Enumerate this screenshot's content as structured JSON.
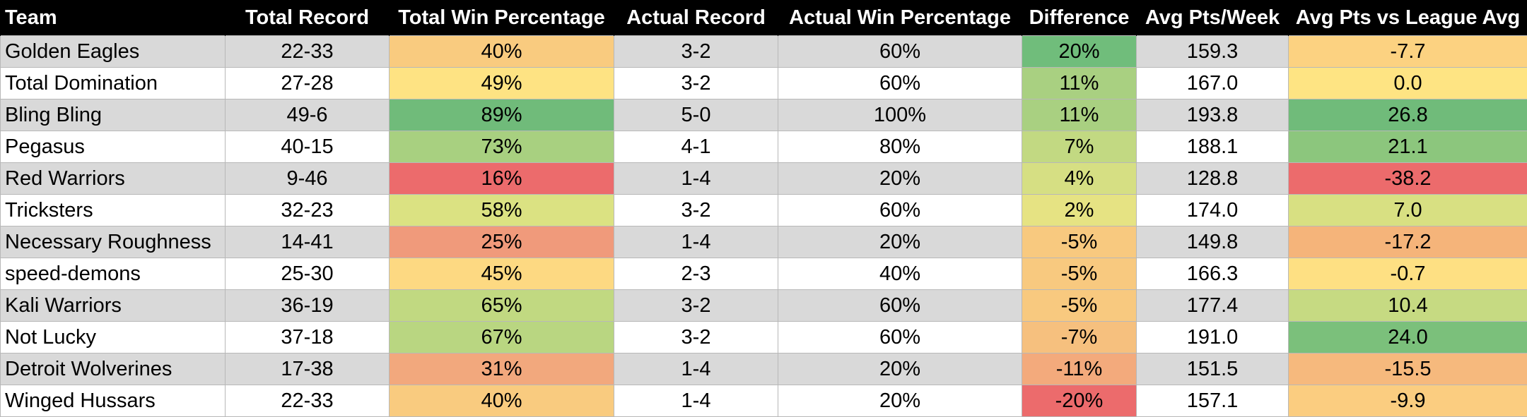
{
  "table": {
    "headers": [
      "Team",
      "Total Record",
      "Total Win Percentage",
      "Actual Record",
      "Actual Win Percentage",
      "Difference",
      "Avg Pts/Week",
      "Avg Pts vs League Avg"
    ],
    "band_colors": [
      "#d9d9d9",
      "#ffffff"
    ],
    "rows": [
      {
        "team": "Golden Eagles",
        "total_record": "22-33",
        "total_win_pct": "40%",
        "total_win_pct_color": "#f9cb7f",
        "actual_record": "3-2",
        "actual_win_pct": "60%",
        "difference": "20%",
        "difference_color": "#70bd7b",
        "avg_pts": "159.3",
        "vs_league": "-7.7",
        "vs_league_color": "#fcd281"
      },
      {
        "team": "Total Domination",
        "total_record": "27-28",
        "total_win_pct": "49%",
        "total_win_pct_color": "#fee383",
        "actual_record": "3-2",
        "actual_win_pct": "60%",
        "difference": "11%",
        "difference_color": "#a9d081",
        "avg_pts": "167.0",
        "vs_league": "0.0",
        "vs_league_color": "#fee483"
      },
      {
        "team": "Bling Bling",
        "total_record": "49-6",
        "total_win_pct": "89%",
        "total_win_pct_color": "#70bb7a",
        "actual_record": "5-0",
        "actual_win_pct": "100%",
        "difference": "11%",
        "difference_color": "#a9d081",
        "avg_pts": "193.8",
        "vs_league": "26.8",
        "vs_league_color": "#70bb7a"
      },
      {
        "team": "Pegasus",
        "total_record": "40-15",
        "total_win_pct": "73%",
        "total_win_pct_color": "#a8d080",
        "actual_record": "4-1",
        "actual_win_pct": "80%",
        "difference": "7%",
        "difference_color": "#c2d982",
        "avg_pts": "188.1",
        "vs_league": "21.1",
        "vs_league_color": "#8cc67d"
      },
      {
        "team": "Red Warriors",
        "total_record": "9-46",
        "total_win_pct": "16%",
        "total_win_pct_color": "#ec6b6c",
        "actual_record": "1-4",
        "actual_win_pct": "20%",
        "difference": "4%",
        "difference_color": "#d6df83",
        "avg_pts": "128.8",
        "vs_league": "-38.2",
        "vs_league_color": "#ec6b6c"
      },
      {
        "team": "Tricksters",
        "total_record": "32-23",
        "total_win_pct": "58%",
        "total_win_pct_color": "#dbe282",
        "actual_record": "3-2",
        "actual_win_pct": "60%",
        "difference": "2%",
        "difference_color": "#e6e383",
        "avg_pts": "174.0",
        "vs_league": "7.0",
        "vs_league_color": "#d8e082"
      },
      {
        "team": "Necessary Roughness",
        "total_record": "14-41",
        "total_win_pct": "25%",
        "total_win_pct_color": "#f09a7b",
        "actual_record": "1-4",
        "actual_win_pct": "20%",
        "difference": "-5%",
        "difference_color": "#f8c97f",
        "avg_pts": "149.8",
        "vs_league": "-17.2",
        "vs_league_color": "#f5b47a"
      },
      {
        "team": "speed-demons",
        "total_record": "25-30",
        "total_win_pct": "45%",
        "total_win_pct_color": "#fdd982",
        "actual_record": "2-3",
        "actual_win_pct": "40%",
        "difference": "-5%",
        "difference_color": "#f8c97f",
        "avg_pts": "166.3",
        "vs_league": "-0.7",
        "vs_league_color": "#fee083"
      },
      {
        "team": "Kali Warriors",
        "total_record": "36-19",
        "total_win_pct": "65%",
        "total_win_pct_color": "#c1d981",
        "actual_record": "3-2",
        "actual_win_pct": "60%",
        "difference": "-5%",
        "difference_color": "#f8c97f",
        "avg_pts": "177.4",
        "vs_league": "10.4",
        "vs_league_color": "#c6da82"
      },
      {
        "team": "Not Lucky",
        "total_record": "37-18",
        "total_win_pct": "67%",
        "total_win_pct_color": "#b9d681",
        "actual_record": "3-2",
        "actual_win_pct": "60%",
        "difference": "-7%",
        "difference_color": "#f6c07e",
        "avg_pts": "191.0",
        "vs_league": "24.0",
        "vs_league_color": "#7bc07b"
      },
      {
        "team": "Detroit Wolverines",
        "total_record": "17-38",
        "total_win_pct": "31%",
        "total_win_pct_color": "#f2a87d",
        "actual_record": "1-4",
        "actual_win_pct": "20%",
        "difference": "-11%",
        "difference_color": "#f3aa7c",
        "avg_pts": "151.5",
        "vs_league": "-15.5",
        "vs_league_color": "#f6b97d"
      },
      {
        "team": "Winged Hussars",
        "total_record": "22-33",
        "total_win_pct": "40%",
        "total_win_pct_color": "#f9cb7f",
        "actual_record": "1-4",
        "actual_win_pct": "20%",
        "difference": "-20%",
        "difference_color": "#ec6b6c",
        "avg_pts": "157.1",
        "vs_league": "-9.9",
        "vs_league_color": "#fbcd80"
      }
    ]
  }
}
